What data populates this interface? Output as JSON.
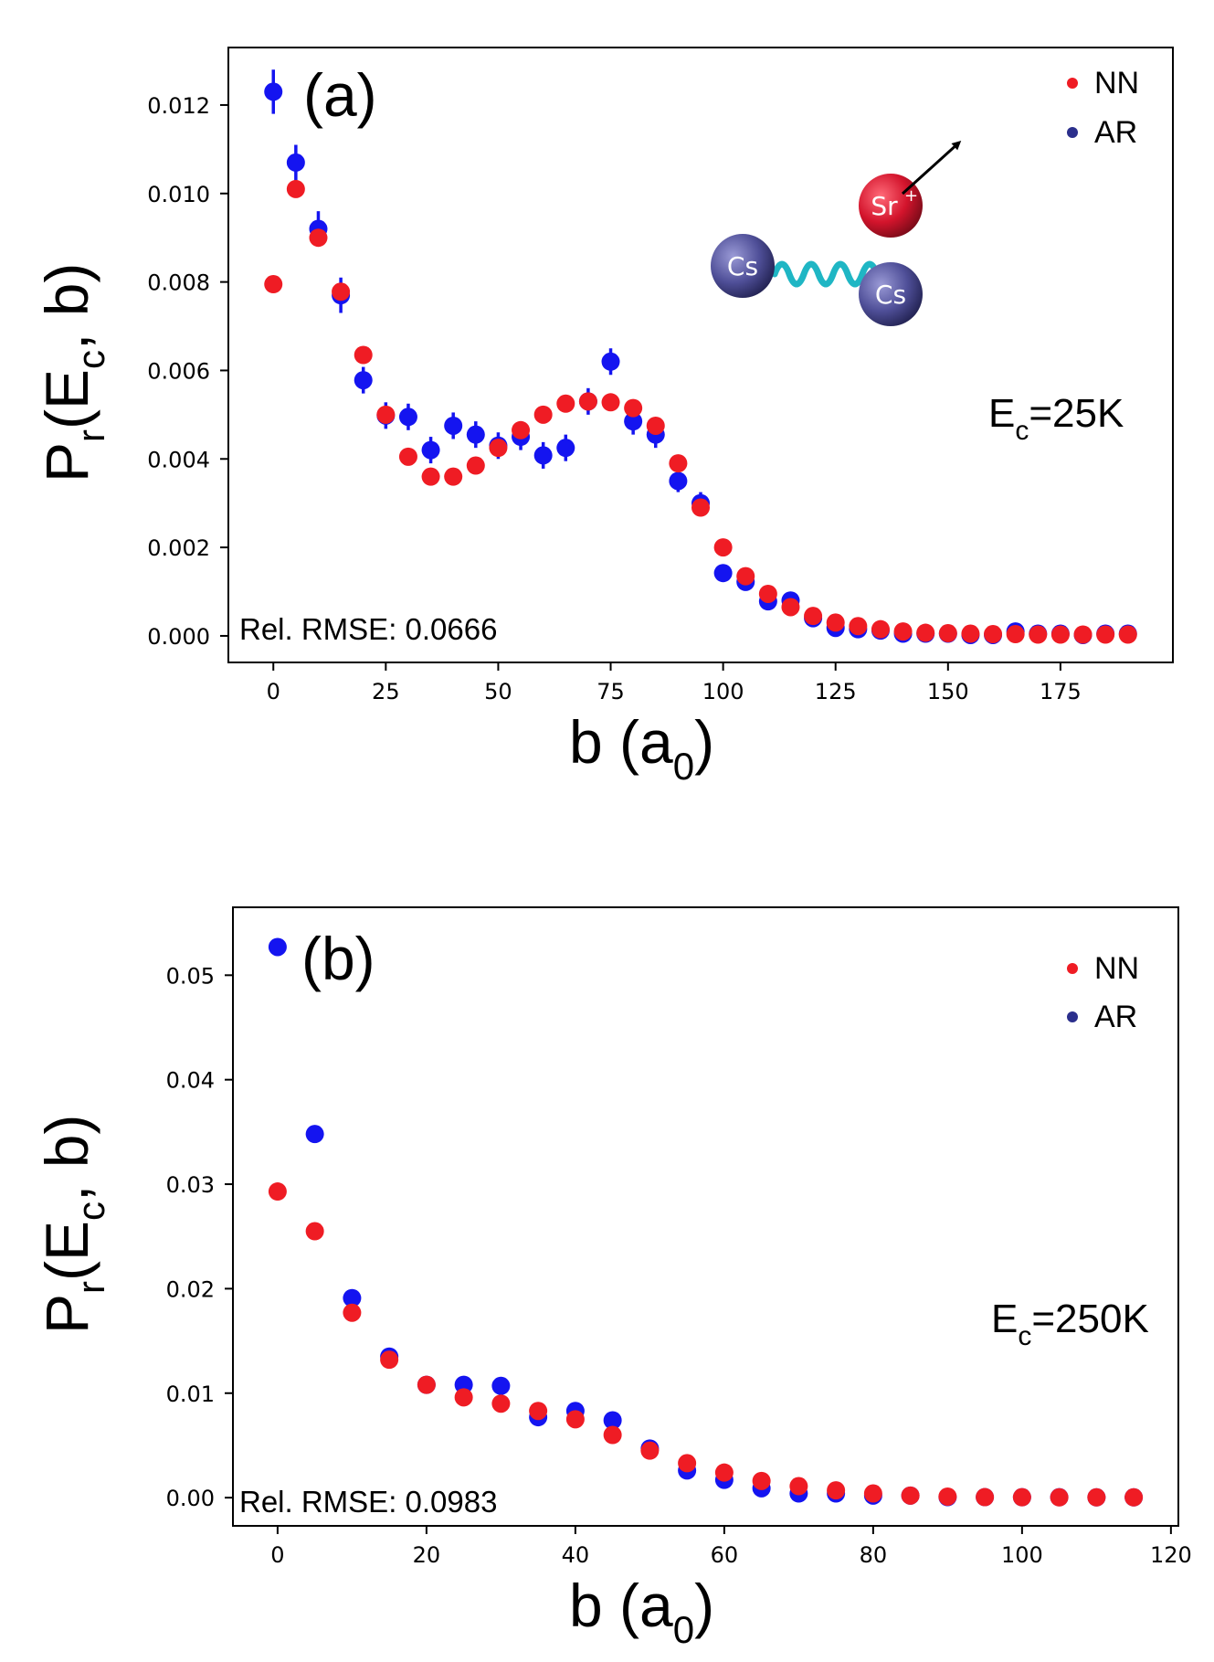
{
  "colors": {
    "NN": "#ef1c24",
    "AR": "#1414f0",
    "AR_legend": "#2b2f8c",
    "spring": "#1fb6c4"
  },
  "chart_data": [
    {
      "type": "scatter",
      "panel_label": "(a)",
      "xlabel": "b (a",
      "xlabel_sub": "0",
      "ylabel_main": "P",
      "ylabel_sub1": "r",
      "ylabel_mid": "(E",
      "ylabel_sub2": "c",
      "ylabel_end": ", b)",
      "xlim": [
        -10,
        200
      ],
      "ylim": [
        -0.0006,
        0.0133
      ],
      "xticks": [
        0,
        25,
        50,
        75,
        100,
        125,
        150,
        175
      ],
      "yticks": [
        0.0,
        0.002,
        0.004,
        0.006,
        0.008,
        0.01,
        0.012
      ],
      "ytick_labels": [
        "0.000",
        "0.002",
        "0.004",
        "0.006",
        "0.008",
        "0.010",
        "0.012"
      ],
      "xtick_labels": [
        "0",
        "25",
        "50",
        "75",
        "100",
        "125",
        "150",
        "175"
      ],
      "legend": [
        "NN",
        "AR"
      ],
      "legend_position": "top-right",
      "rmse_text": "Rel. RMSE: 0.0666",
      "energy_text_main": "E",
      "energy_text_sub": "c",
      "energy_text_value": "=25K",
      "inset_labels": {
        "atom1": "Cs",
        "atom2": "Cs",
        "ion": "Sr",
        "ion_charge": "+"
      },
      "series": [
        {
          "name": "NN",
          "x": [
            0,
            5,
            10,
            15,
            20,
            25,
            30,
            35,
            40,
            45,
            50,
            55,
            60,
            65,
            70,
            75,
            80,
            85,
            90,
            95,
            100,
            105,
            110,
            115,
            120,
            125,
            130,
            135,
            140,
            145,
            150,
            155,
            160,
            165,
            170,
            175,
            180,
            185,
            190
          ],
          "y": [
            0.00795,
            0.0101,
            0.009,
            0.00778,
            0.00635,
            0.005,
            0.00405,
            0.0036,
            0.0036,
            0.00385,
            0.00425,
            0.00465,
            0.005,
            0.00525,
            0.0053,
            0.00528,
            0.00515,
            0.00475,
            0.0039,
            0.0029,
            0.002,
            0.00135,
            0.00095,
            0.00065,
            0.00045,
            0.0003,
            0.00022,
            0.00015,
            0.0001,
            7e-05,
            6e-05,
            5e-05,
            4e-05,
            4e-05,
            3e-05,
            3e-05,
            3e-05,
            3e-05,
            3e-05
          ]
        },
        {
          "name": "AR",
          "x": [
            0,
            5,
            10,
            15,
            20,
            25,
            30,
            35,
            40,
            45,
            50,
            55,
            60,
            65,
            70,
            75,
            80,
            85,
            90,
            95,
            100,
            105,
            110,
            115,
            120,
            125,
            130,
            135,
            140,
            145,
            150,
            155,
            160,
            165,
            170,
            175,
            180,
            185,
            190
          ],
          "y": [
            0.0123,
            0.0107,
            0.0092,
            0.0077,
            0.00578,
            0.00498,
            0.00495,
            0.0042,
            0.00475,
            0.00455,
            0.0043,
            0.0045,
            0.00408,
            0.00425,
            0.0053,
            0.0062,
            0.00485,
            0.00455,
            0.0035,
            0.003,
            0.00142,
            0.00122,
            0.00078,
            0.0008,
            0.0004,
            0.00018,
            0.00015,
            0.00012,
            5e-05,
            5e-05,
            5e-05,
            2e-05,
            2e-05,
            0.0001,
            5e-05,
            5e-05,
            2e-05,
            5e-05,
            5e-05
          ],
          "yerr": [
            0.0005,
            0.0004,
            0.0004,
            0.0004,
            0.0003,
            0.0003,
            0.0003,
            0.0003,
            0.0003,
            0.0003,
            0.0003,
            0.0003,
            0.0003,
            0.0003,
            0.0003,
            0.0003,
            0.0003,
            0.0003,
            0.00025,
            0.00025,
            0.00015,
            0.00012,
            0.0001,
            0.0001,
            8e-05,
            5e-05,
            5e-05,
            5e-05,
            4e-05,
            4e-05,
            3e-05,
            3e-05,
            3e-05,
            3e-05,
            3e-05,
            3e-05,
            3e-05,
            3e-05,
            3e-05
          ]
        }
      ]
    },
    {
      "type": "scatter",
      "panel_label": "(b)",
      "xlabel": "b (a",
      "xlabel_sub": "0",
      "ylabel_main": "P",
      "ylabel_sub1": "r",
      "ylabel_mid": "(E",
      "ylabel_sub2": "c",
      "ylabel_end": ", b)",
      "xlim": [
        -6,
        121
      ],
      "ylim": [
        -0.0027,
        0.0565
      ],
      "xticks": [
        0,
        20,
        40,
        60,
        80,
        100,
        120
      ],
      "xtick_labels": [
        "0",
        "20",
        "40",
        "60",
        "80",
        "100",
        "120"
      ],
      "yticks": [
        0.0,
        0.01,
        0.02,
        0.03,
        0.04,
        0.05
      ],
      "ytick_labels": [
        "0.00",
        "0.01",
        "0.02",
        "0.03",
        "0.04",
        "0.05"
      ],
      "legend": [
        "NN",
        "AR"
      ],
      "legend_position": "top-right",
      "rmse_text": "Rel. RMSE: 0.0983",
      "energy_text_main": "E",
      "energy_text_sub": "c",
      "energy_text_value": "=250K",
      "series": [
        {
          "name": "NN",
          "x": [
            0,
            5,
            10,
            15,
            20,
            25,
            30,
            35,
            40,
            45,
            50,
            55,
            60,
            65,
            70,
            75,
            80,
            85,
            90,
            95,
            100,
            105,
            110,
            115
          ],
          "y": [
            0.0293,
            0.0255,
            0.0177,
            0.0132,
            0.0108,
            0.0096,
            0.009,
            0.0083,
            0.0075,
            0.006,
            0.0045,
            0.0033,
            0.0024,
            0.0016,
            0.0011,
            0.0007,
            0.0004,
            0.0002,
            0.0001,
            5e-05,
            4e-05,
            3e-05,
            3e-05,
            3e-05
          ]
        },
        {
          "name": "AR",
          "x": [
            0,
            5,
            10,
            15,
            20,
            25,
            30,
            35,
            40,
            45,
            50,
            55,
            60,
            65,
            70,
            75,
            80,
            85,
            90,
            95,
            100,
            105,
            110,
            115
          ],
          "y": [
            0.0527,
            0.0348,
            0.0191,
            0.0135,
            0.0108,
            0.0108,
            0.0107,
            0.0077,
            0.0083,
            0.0074,
            0.0047,
            0.0026,
            0.0017,
            0.0009,
            0.0004,
            0.0004,
            0.0002,
            0.0002,
            5e-05,
            5e-05,
            4e-05,
            4e-05,
            3e-05,
            3e-05
          ],
          "yerr": [
            0.0004,
            0.0003,
            0.0003,
            0.0003,
            0.0003,
            0.0003,
            0.0003,
            0.0003,
            0.0003,
            0.0003,
            0.0002,
            0.0002,
            0.0002,
            0.0001,
            0.0001,
            0.0001,
            0.0001,
            0.0001,
            5e-05,
            5e-05,
            5e-05,
            5e-05,
            5e-05,
            5e-05
          ]
        }
      ]
    }
  ]
}
